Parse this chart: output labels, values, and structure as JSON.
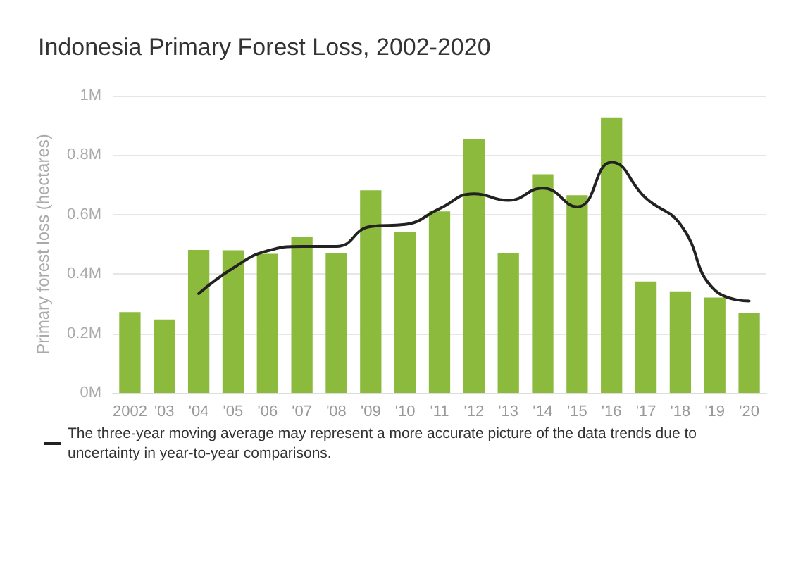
{
  "chart_data": {
    "type": "bar",
    "title": "Indonesia Primary Forest Loss, 2002-2020",
    "ylabel": "Primary forest loss (hectares)",
    "categories": [
      "2002",
      "'03",
      "'04",
      "'05",
      "'06",
      "'07",
      "'08",
      "'09",
      "'10",
      "'11",
      "'12",
      "'13",
      "'14",
      "'15",
      "'16",
      "'17",
      "'18",
      "'19",
      "'20"
    ],
    "series": [
      {
        "color": "#8cba3c",
        "values": [
          0.272,
          0.247,
          0.481,
          0.48,
          0.468,
          0.525,
          0.471,
          0.682,
          0.54,
          0.611,
          0.854,
          0.471,
          0.736,
          0.665,
          0.927,
          0.375,
          0.342,
          0.321,
          0.268
        ]
      },
      {
        "type": "line",
        "name": "The three-year moving average may represent a more accurate picture of the data trends due to uncertainty in year-to-year comparisons.",
        "color": "#222222",
        "marker": "none",
        "line_style": "solid",
        "values": [
          null,
          null,
          0.334,
          0.42,
          0.478,
          0.493,
          0.493,
          0.56,
          0.567,
          0.62,
          0.67,
          0.648,
          0.689,
          0.626,
          0.776,
          0.655,
          0.567,
          0.346,
          0.309
        ]
      }
    ],
    "ylim": [
      0,
      1
    ],
    "yticks": [
      {
        "value": 0,
        "label": "0M"
      },
      {
        "value": 0.2,
        "label": "0.2M"
      },
      {
        "value": 0.4,
        "label": "0.4M"
      },
      {
        "value": 0.6,
        "label": "0.6M"
      },
      {
        "value": 0.8,
        "label": "0.8M"
      },
      {
        "value": 1,
        "label": "1M"
      }
    ],
    "grid": "y",
    "legend": "bottom"
  }
}
